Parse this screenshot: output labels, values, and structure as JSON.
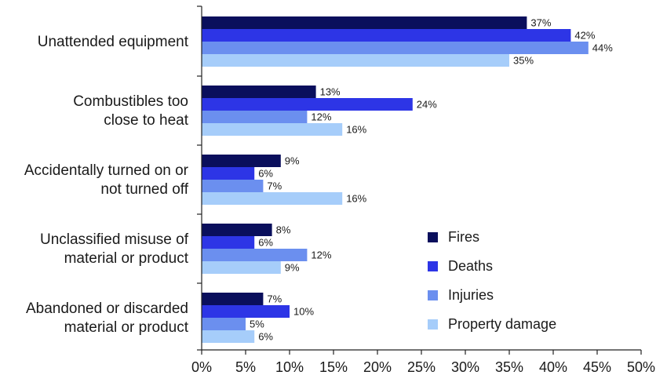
{
  "chart_data": {
    "type": "bar",
    "orientation": "horizontal",
    "categories": [
      [
        "Unattended equipment"
      ],
      [
        "Combustibles too",
        "close to heat"
      ],
      [
        "Accidentally turned on or",
        "not turned off"
      ],
      [
        "Unclassified misuse of",
        "material or product"
      ],
      [
        "Abandoned or discarded",
        "material or product"
      ]
    ],
    "series": [
      {
        "name": "Fires",
        "color": "#0a0f5c",
        "values": [
          37,
          13,
          9,
          8,
          7
        ]
      },
      {
        "name": "Deaths",
        "color": "#2d35e6",
        "values": [
          42,
          24,
          6,
          6,
          10
        ]
      },
      {
        "name": "Injuries",
        "color": "#6b8fef",
        "values": [
          44,
          12,
          7,
          12,
          5
        ]
      },
      {
        "name": "Property damage",
        "color": "#a6cdfa",
        "values": [
          35,
          16,
          16,
          9,
          6
        ]
      }
    ],
    "value_suffix": "%",
    "xlim": [
      0,
      50
    ],
    "xticks": [
      0,
      5,
      10,
      15,
      20,
      25,
      30,
      35,
      40,
      45,
      50
    ],
    "legend_position": "bottom-right",
    "grid": false
  }
}
